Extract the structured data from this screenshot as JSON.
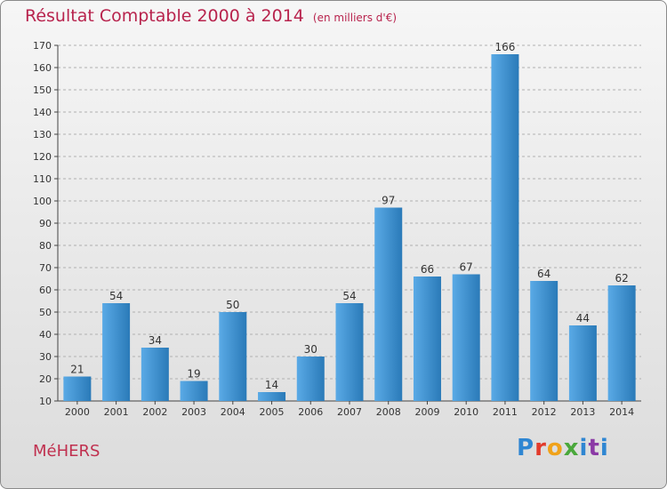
{
  "header": {
    "title": "Résultat Comptable 2000 à 2014",
    "subtitle": "(en milliers d'€)"
  },
  "footer": {
    "commune": "MéHERS",
    "logo": {
      "p": "P",
      "r": "r",
      "o": "o",
      "x": "x",
      "i": "i",
      "t": "t",
      "i2": "i"
    }
  },
  "colors": {
    "bar_light": "#5aaae6",
    "bar_dark": "#2a7ab8",
    "title": "#b8234d"
  },
  "chart_data": {
    "type": "bar",
    "title": "Résultat Comptable 2000 à 2014",
    "subtitle": "(en milliers d'€)",
    "categories": [
      "2000",
      "2001",
      "2002",
      "2003",
      "2004",
      "2005",
      "2006",
      "2007",
      "2008",
      "2009",
      "2010",
      "2011",
      "2012",
      "2013",
      "2014"
    ],
    "values": [
      21,
      54,
      34,
      19,
      50,
      14,
      30,
      54,
      97,
      66,
      67,
      166,
      64,
      44,
      62
    ],
    "ylim": [
      10,
      170
    ],
    "yticks": [
      10,
      20,
      30,
      40,
      50,
      60,
      70,
      80,
      90,
      100,
      110,
      120,
      130,
      140,
      150,
      160,
      170
    ],
    "grid": true,
    "grid_style": "dashed-horizontal"
  }
}
